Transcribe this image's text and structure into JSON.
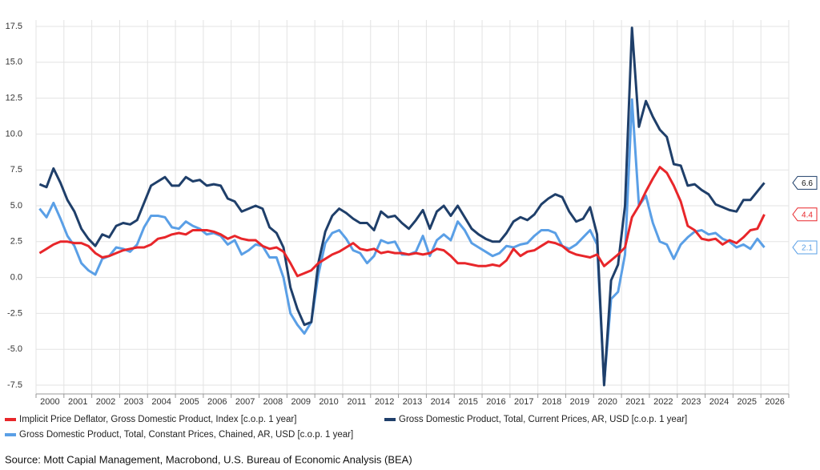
{
  "chart_data": {
    "type": "line",
    "categories": [
      null,
      "2000",
      null,
      null,
      null,
      "2001",
      null,
      null,
      null,
      "2002",
      null,
      null,
      null,
      "2003",
      null,
      null,
      null,
      "2004",
      null,
      null,
      null,
      "2005",
      null,
      null,
      null,
      "2006",
      null,
      null,
      null,
      "2007",
      null,
      null,
      null,
      "2008",
      null,
      null,
      null,
      "2009",
      null,
      null,
      null,
      "2010",
      null,
      null,
      null,
      "2011",
      null,
      null,
      null,
      "2012",
      null,
      null,
      null,
      "2013",
      null,
      null,
      null,
      "2014",
      null,
      null,
      null,
      "2015",
      null,
      null,
      null,
      "2016",
      null,
      null,
      null,
      "2017",
      null,
      null,
      null,
      "2018",
      null,
      null,
      null,
      "2019",
      null,
      null,
      null,
      "2020",
      null,
      null,
      null,
      "2021",
      null,
      null,
      null,
      "2022",
      null,
      null,
      null,
      "2023",
      null,
      null,
      null,
      "2024",
      null,
      null,
      null,
      "2025",
      null,
      null,
      null,
      "2026",
      null,
      null
    ],
    "series": [
      {
        "name": "Implicit Price Deflator, Gross Domestic Product, Index [c.o.p. 1 year]",
        "color": "#e8262a",
        "values": [
          1.7,
          2.0,
          2.3,
          2.5,
          2.5,
          2.4,
          2.4,
          2.2,
          1.7,
          1.4,
          1.5,
          1.7,
          1.9,
          2.0,
          2.1,
          2.1,
          2.3,
          2.7,
          2.8,
          3.0,
          3.1,
          3.0,
          3.3,
          3.3,
          3.3,
          3.2,
          3.0,
          2.7,
          2.9,
          2.7,
          2.6,
          2.6,
          2.2,
          2.0,
          2.1,
          1.8,
          1.0,
          0.1,
          0.3,
          0.5,
          1.0,
          1.3,
          1.6,
          1.8,
          2.1,
          2.4,
          2.0,
          1.9,
          2.0,
          1.7,
          1.8,
          1.7,
          1.7,
          1.6,
          1.7,
          1.6,
          1.7,
          2.0,
          1.9,
          1.5,
          1.0,
          1.0,
          0.9,
          0.8,
          0.8,
          0.9,
          0.8,
          1.2,
          2.0,
          1.5,
          1.8,
          1.9,
          2.2,
          2.5,
          2.4,
          2.2,
          1.8,
          1.6,
          1.5,
          1.4,
          1.6,
          0.8,
          1.2,
          1.6,
          2.1,
          4.2,
          5.0,
          6.0,
          6.9,
          7.7,
          7.3,
          6.4,
          5.3,
          3.6,
          3.3,
          2.7,
          2.6,
          2.7,
          2.3,
          2.6,
          2.4,
          2.8,
          3.3,
          3.4,
          4.4,
          null,
          null,
          null
        ]
      },
      {
        "name": "Gross Domestic Product, Total, Current Prices, AR, USD [c.o.p. 1 year]",
        "color": "#1f3f6a",
        "values": [
          6.5,
          6.3,
          7.6,
          6.6,
          5.4,
          4.6,
          3.4,
          2.7,
          2.2,
          3.0,
          2.8,
          3.6,
          3.8,
          3.7,
          4.0,
          5.2,
          6.4,
          6.7,
          7.0,
          6.4,
          6.4,
          7.0,
          6.7,
          6.8,
          6.4,
          6.5,
          6.4,
          5.5,
          5.3,
          4.6,
          4.8,
          5.0,
          4.8,
          3.5,
          3.1,
          2.1,
          -0.7,
          -2.2,
          -3.3,
          -3.1,
          1.0,
          3.2,
          4.3,
          4.8,
          4.5,
          4.1,
          3.8,
          3.8,
          3.3,
          4.6,
          4.2,
          4.3,
          3.8,
          3.4,
          4.0,
          4.7,
          3.4,
          4.6,
          5.0,
          4.3,
          5.0,
          4.2,
          3.4,
          3.0,
          2.7,
          2.5,
          2.5,
          3.1,
          3.9,
          4.2,
          4.0,
          4.4,
          5.1,
          5.5,
          5.8,
          5.6,
          4.6,
          3.9,
          4.1,
          4.9,
          3.0,
          -7.5,
          -0.2,
          0.9,
          5.0,
          17.4,
          10.5,
          12.3,
          11.2,
          10.3,
          9.8,
          7.9,
          7.8,
          6.4,
          6.5,
          6.1,
          5.8,
          5.1,
          4.9,
          4.7,
          4.6,
          5.4,
          5.4,
          6.0,
          6.6,
          null,
          null,
          null
        ]
      },
      {
        "name": "Gross Domestic Product, Total, Constant Prices, Chained, AR, USD [c.o.p. 1 year]",
        "color": "#5a9fe6",
        "values": [
          4.8,
          4.2,
          5.2,
          4.1,
          2.9,
          2.2,
          1.0,
          0.5,
          0.2,
          1.3,
          1.5,
          2.1,
          2.0,
          1.8,
          2.3,
          3.5,
          4.3,
          4.3,
          4.2,
          3.5,
          3.4,
          3.9,
          3.6,
          3.4,
          3.0,
          3.1,
          2.9,
          2.3,
          2.6,
          1.6,
          1.9,
          2.3,
          2.2,
          1.4,
          1.4,
          0.0,
          -2.5,
          -3.3,
          -3.9,
          -3.1,
          0.2,
          2.4,
          3.1,
          3.3,
          2.7,
          1.9,
          1.7,
          1.0,
          1.5,
          2.6,
          2.4,
          2.5,
          1.6,
          1.6,
          1.8,
          2.9,
          1.5,
          2.6,
          3.0,
          2.6,
          3.9,
          3.3,
          2.4,
          2.1,
          1.8,
          1.5,
          1.7,
          2.2,
          2.1,
          2.3,
          2.4,
          2.9,
          3.3,
          3.3,
          3.1,
          2.2,
          2.0,
          2.3,
          2.8,
          3.3,
          2.3,
          -7.4,
          -1.5,
          -1.0,
          1.6,
          12.4,
          5.0,
          5.7,
          3.8,
          2.5,
          2.3,
          1.3,
          2.3,
          2.8,
          3.2,
          3.3,
          3.0,
          3.1,
          2.7,
          2.5,
          2.1,
          2.3,
          2.0,
          2.7,
          2.1,
          null,
          null,
          null
        ]
      }
    ],
    "ylim": [
      -7.5,
      17.5
    ],
    "yticks": [
      {
        "value": -7.5,
        "label": "-7.5"
      },
      {
        "value": -5,
        "label": "-5.0"
      },
      -2.5,
      {
        "value": 0,
        "label": "0.0"
      },
      2.5,
      {
        "value": 5,
        "label": "5.0"
      },
      7.5,
      {
        "value": 10,
        "label": "10.0"
      },
      12.5,
      {
        "value": 15,
        "label": "15.0"
      },
      17.5
    ],
    "grid": true,
    "source": "Source: Mott Capial Management, Macrobond, U.S. Bureau of Economic Analysis (BEA)"
  }
}
